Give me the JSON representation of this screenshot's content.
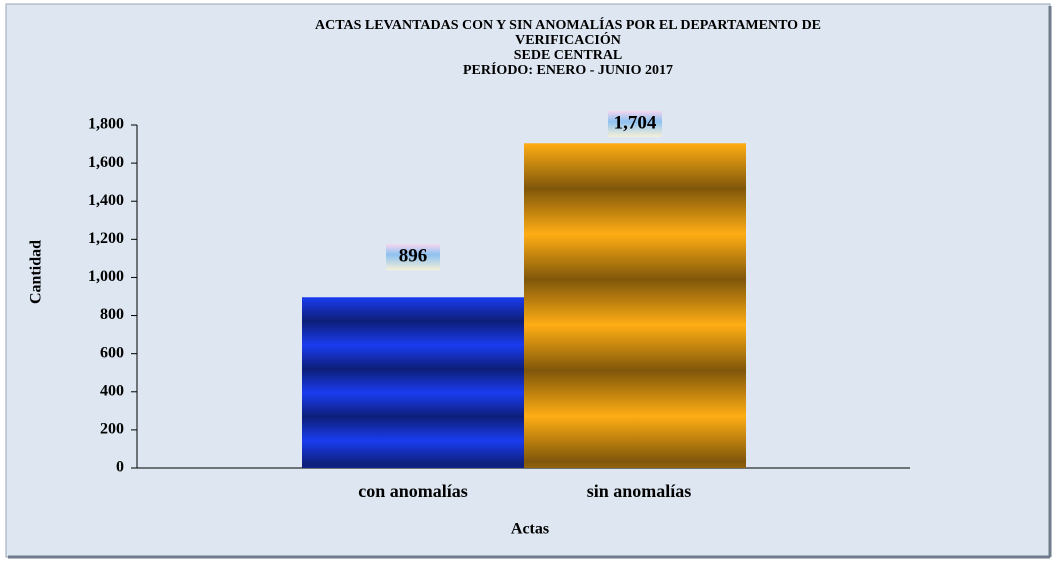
{
  "chart_data": {
    "type": "bar",
    "title": [
      "ACTAS LEVANTADAS CON Y SIN ANOMALÍAS POR EL DEPARTAMENTO DE",
      "VERIFICACIÓN",
      "SEDE CENTRAL",
      "PERÍODO: ENERO - JUNIO 2017"
    ],
    "categories": [
      "con anomalías",
      "sin anomalías"
    ],
    "values": [
      896,
      1704
    ],
    "value_labels": [
      "896",
      "1,704"
    ],
    "colors": [
      "#1a3cf0",
      "#ffad14"
    ],
    "xlabel": "Actas",
    "ylabel": "Cantidad",
    "ylim": [
      0,
      1800
    ],
    "yticks": [
      0,
      200,
      400,
      600,
      800,
      {
        "value": 1000,
        "label": "1,000"
      },
      {
        "value": 1200,
        "label": "1,200"
      },
      {
        "value": 1400,
        "label": "1,400"
      },
      {
        "value": 1600,
        "label": "1,600"
      },
      {
        "value": 1800,
        "label": "1,800"
      }
    ],
    "grid": false
  }
}
